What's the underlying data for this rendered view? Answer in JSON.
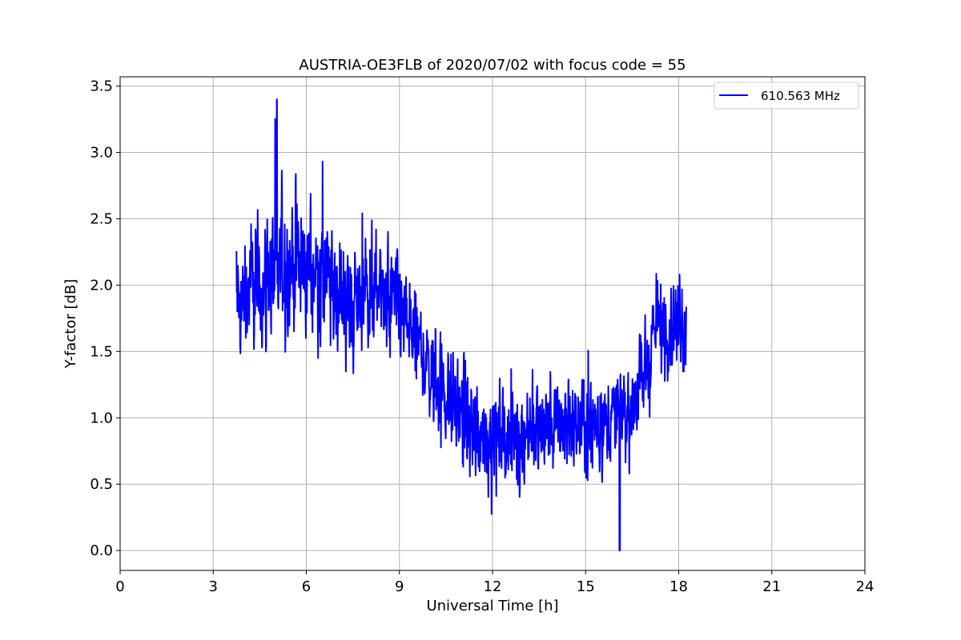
{
  "chart_data": {
    "type": "line",
    "title": "AUSTRIA-OE3FLB of 2020/07/02 with focus code = 55",
    "xlabel": "Universal Time [h]",
    "ylabel": "Y-factor [dB]",
    "xlim": [
      0,
      24
    ],
    "ylim": [
      -0.15,
      3.57
    ],
    "x_ticks": [
      0,
      3,
      6,
      9,
      12,
      15,
      18,
      21,
      24
    ],
    "x_tick_labels": [
      "0",
      "3",
      "6",
      "9",
      "12",
      "15",
      "18",
      "21",
      "24"
    ],
    "y_ticks": [
      0.0,
      0.5,
      1.0,
      1.5,
      2.0,
      2.5,
      3.0,
      3.5
    ],
    "y_tick_labels": [
      "0.0",
      "0.5",
      "1.0",
      "1.5",
      "2.0",
      "2.5",
      "3.0",
      "3.5"
    ],
    "grid": true,
    "legend_position": "top-right",
    "series": [
      {
        "name": "610.563 MHz",
        "color": "#0000ff",
        "x_range": [
          3.75,
          18.25
        ],
        "trend": {
          "x": [
            3.75,
            4.5,
            5.5,
            6.5,
            7.5,
            8.5,
            9.5,
            10.5,
            11.5,
            12.5,
            13.5,
            14.5,
            15.5,
            16.3,
            16.8,
            17.3,
            18.25
          ],
          "mean": [
            1.85,
            2.0,
            2.2,
            2.05,
            1.85,
            1.95,
            1.6,
            1.15,
            0.9,
            0.85,
            0.9,
            0.95,
            0.95,
            1.05,
            1.25,
            1.7,
            1.7
          ],
          "amp": [
            0.55,
            0.6,
            0.65,
            0.6,
            0.55,
            0.5,
            0.5,
            0.5,
            0.45,
            0.45,
            0.45,
            0.45,
            0.45,
            0.45,
            0.5,
            0.45,
            0.45
          ]
        },
        "peak": {
          "x": 5.05,
          "y": 3.4
        },
        "minimum": {
          "x": 16.1,
          "y": 0.0
        }
      }
    ]
  }
}
